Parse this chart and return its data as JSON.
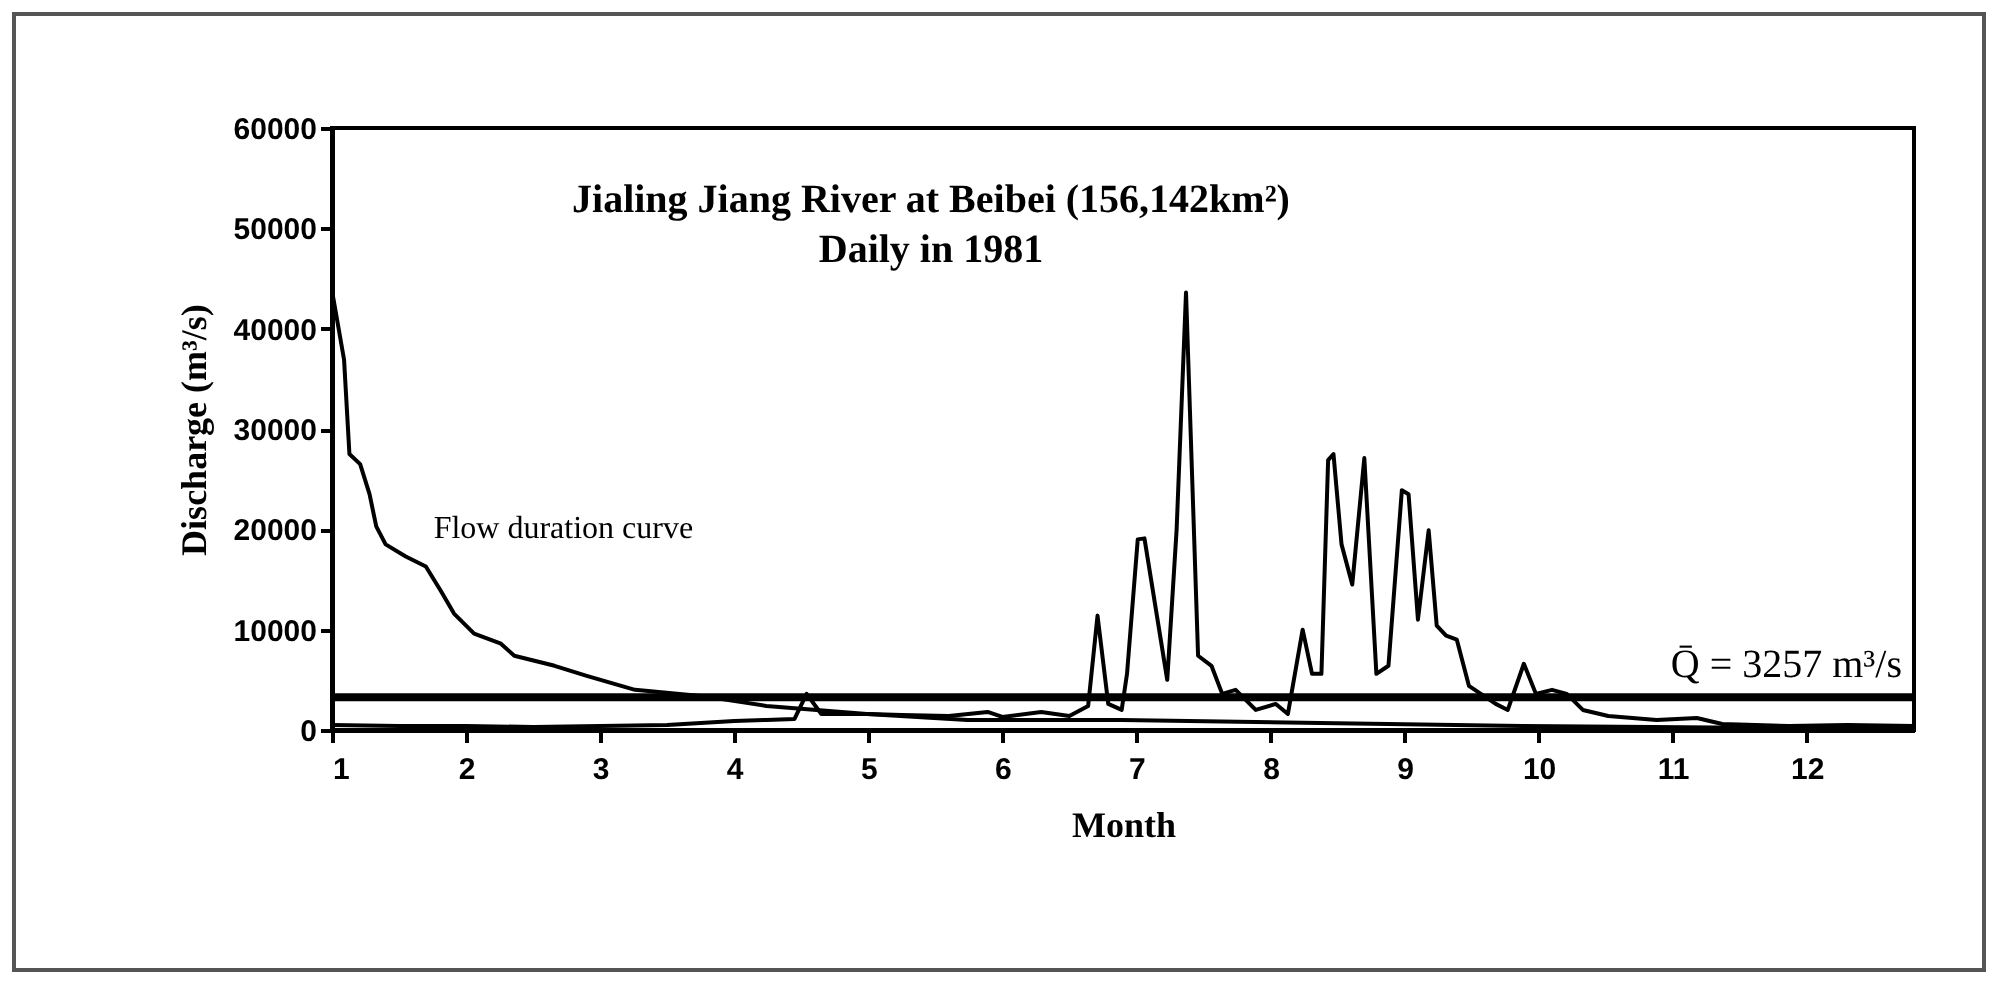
{
  "chart_data": {
    "type": "line",
    "title": [
      "Jialing Jiang River at Beibei (156,142km²)",
      "Daily in 1981"
    ],
    "xlabel": "Month",
    "ylabel": "Discharge (m³/s)",
    "xlim": [
      1,
      12.8
    ],
    "xticks": [
      1,
      2,
      3,
      4,
      5,
      6,
      7,
      8,
      9,
      10,
      11,
      12
    ],
    "ylim": [
      0,
      60000
    ],
    "yticks": [
      0,
      10000,
      20000,
      30000,
      40000,
      50000,
      60000
    ],
    "grid": false,
    "marker": "none",
    "line_style": "solid",
    "series": [
      {
        "color": "#000000",
        "x": [
          1,
          1.5,
          2,
          2.5,
          3,
          3.5,
          4,
          4.24,
          4.45,
          4.54,
          4.65,
          5,
          5.25,
          5.6,
          5.89,
          6,
          6.29,
          6.5,
          6.64,
          6.71,
          6.79,
          6.89,
          6.93,
          7.01,
          7.06,
          7.23,
          7.3,
          7.37,
          7.46,
          7.56,
          7.64,
          7.74,
          7.89,
          8.04,
          8.13,
          8.24,
          8.31,
          8.38,
          8.43,
          8.47,
          8.53,
          8.61,
          8.7,
          8.79,
          8.88,
          8.98,
          9.03,
          9.1,
          9.18,
          9.24,
          9.31,
          9.39,
          9.48,
          9.68,
          9.77,
          9.89,
          9.98,
          10.1,
          10.21,
          10.33,
          10.52,
          10.88,
          11.18,
          11.37,
          11.87,
          12.3,
          12.8
        ],
        "values": [
          500,
          400,
          400,
          300,
          400,
          500,
          900,
          1000,
          1100,
          3600,
          1600,
          1600,
          1500,
          1400,
          1800,
          1300,
          1800,
          1400,
          2400,
          11400,
          2600,
          2000,
          5600,
          19000,
          19100,
          5000,
          20000,
          43600,
          7400,
          6400,
          3600,
          4000,
          2000,
          2600,
          1600,
          10000,
          5600,
          5600,
          26900,
          27500,
          18500,
          14500,
          27100,
          5600,
          6400,
          23900,
          23500,
          11000,
          19900,
          10400,
          9400,
          9000,
          4400,
          2600,
          2000,
          6600,
          3600,
          4000,
          3600,
          2000,
          1400,
          1000,
          1200,
          600,
          400,
          500,
          400
        ]
      },
      {
        "name": "Flow duration curve",
        "color": "#000000",
        "x": [
          1,
          1.09,
          1.13,
          1.21,
          1.28,
          1.33,
          1.4,
          1.55,
          1.7,
          1.81,
          1.91,
          2.06,
          2.26,
          2.36,
          2.66,
          2.9,
          3.26,
          3.75,
          4.24,
          4.99,
          5.74,
          6.89,
          9.88,
          12.8
        ],
        "values": [
          43800,
          36900,
          27500,
          26500,
          23500,
          20300,
          18500,
          17300,
          16300,
          13900,
          11600,
          9600,
          8600,
          7400,
          6400,
          5400,
          4000,
          3400,
          2400,
          1600,
          1000,
          1000,
          400,
          100
        ]
      }
    ],
    "ref_lines": [
      {
        "axis": "y",
        "value": 3257,
        "label": "Q̄ = 3257 m³/s",
        "color": "#000000"
      }
    ]
  }
}
